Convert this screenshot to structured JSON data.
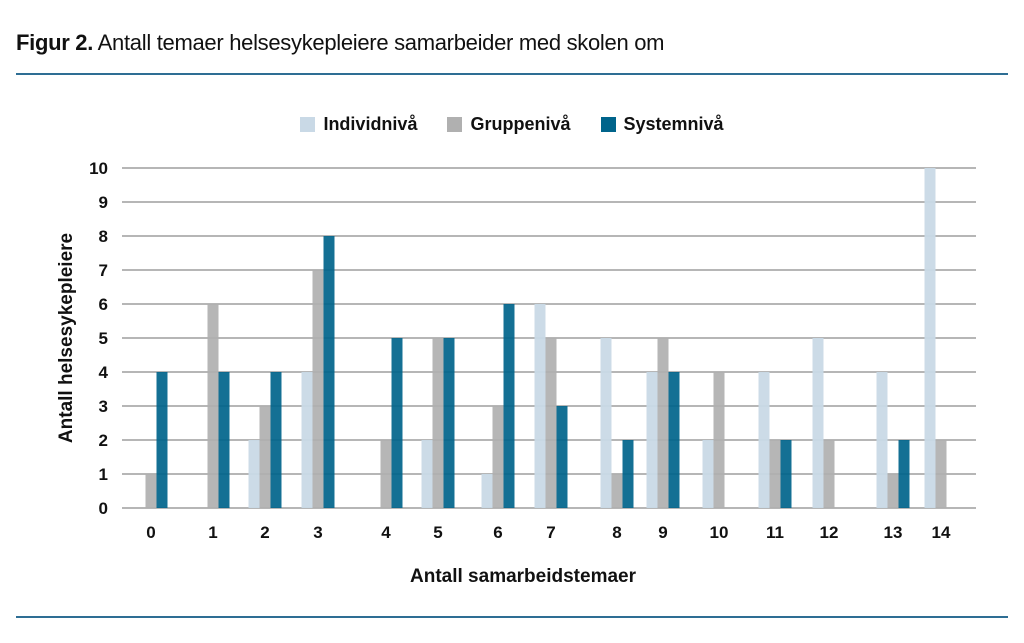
{
  "title": {
    "prefix": "Figur 2.",
    "text": "Antall temaer helsesykepleiere samarbeider med skolen om"
  },
  "chart_data": {
    "type": "bar",
    "title": "Antall temaer helsesykepleiere samarbeider med skolen om",
    "xlabel": "Antall samarbeidstemaer",
    "ylabel": "Antall helsesykepleiere",
    "ylim": [
      0,
      10
    ],
    "yticks": [
      0,
      1,
      2,
      3,
      4,
      5,
      6,
      7,
      8,
      9,
      10
    ],
    "grid": true,
    "legend_position": "top",
    "categories": [
      "0",
      "1",
      "2",
      "3",
      "4",
      "5",
      "6",
      "7",
      "8",
      "9",
      "10",
      "11",
      "12",
      "13",
      "14"
    ],
    "series": [
      {
        "name": "Individnivå",
        "color": "#c9d9e6",
        "values": [
          0,
          0,
          2,
          4,
          0,
          2,
          1,
          6,
          5,
          4,
          2,
          4,
          5,
          4,
          10
        ]
      },
      {
        "name": "Gruppenivå",
        "color": "#b0b0b0",
        "values": [
          1,
          6,
          3,
          7,
          2,
          5,
          3,
          5,
          1,
          5,
          4,
          2,
          2,
          1,
          2
        ]
      },
      {
        "name": "Systemnivå",
        "color": "#00648b",
        "values": [
          4,
          4,
          4,
          8,
          5,
          5,
          6,
          3,
          2,
          4,
          0,
          2,
          0,
          2,
          0
        ]
      }
    ]
  }
}
